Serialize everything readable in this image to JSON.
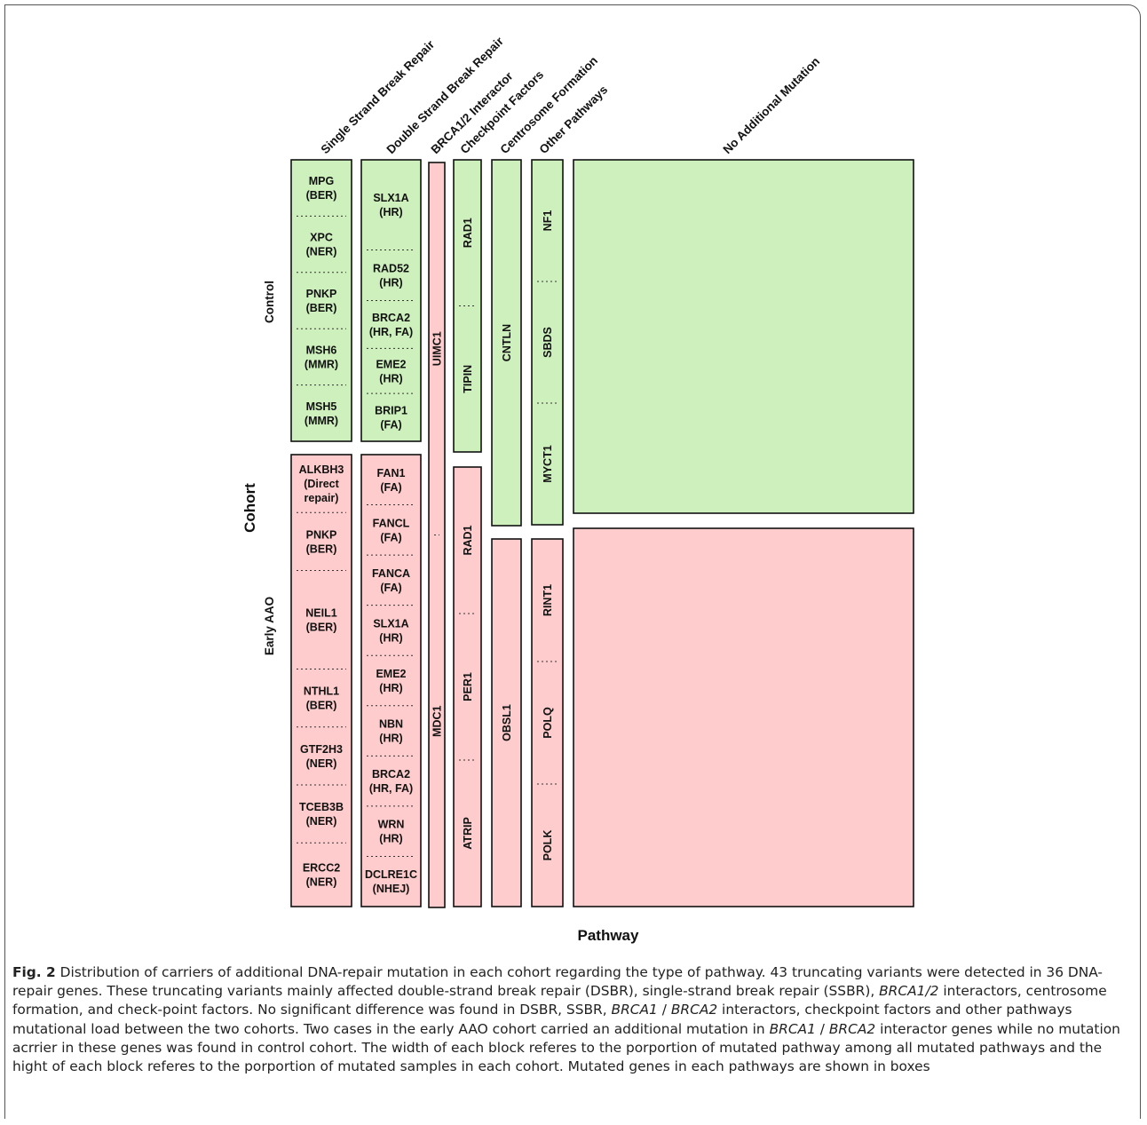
{
  "figure": {
    "y_axis_title": "Cohort",
    "x_axis_title": "Pathway",
    "cohorts": [
      {
        "name": "Control",
        "color": "#cdf0bd"
      },
      {
        "name": "Early AAO",
        "color": "#fecccc"
      }
    ],
    "pathways": [
      "Single Strand Break Repair",
      "Double Strand Break Repair",
      "BRCA1/2 Interactor",
      "Checkpoint Factors",
      "Centrosome Formation",
      "Other Pathways",
      "No Additional Mutation"
    ],
    "blocks": [
      {
        "pathway": "Single Strand Break Repair",
        "cohort": "Control",
        "orientation": "horizontal",
        "genes": [
          "MPG\n(BER)",
          "XPC\n(NER)",
          "PNKP\n(BER)",
          "MSH6\n(MMR)",
          "MSH5\n(MMR)"
        ]
      },
      {
        "pathway": "Double Strand Break Repair",
        "cohort": "Control",
        "orientation": "horizontal",
        "genes": [
          "SLX1A\n(HR)",
          "RAD52\n(HR)",
          "BRCA2\n(HR, FA)",
          "EME2\n(HR)",
          "BRIP1\n(FA)"
        ]
      },
      {
        "pathway": "BRCA1/2 Interactor",
        "cohort": "Early AAO",
        "orientation": "vertical",
        "genes": [
          "UIMC1",
          "MDC1"
        ]
      },
      {
        "pathway": "Checkpoint Factors",
        "cohort": "Control",
        "orientation": "vertical",
        "genes": [
          "RAD1",
          "TIPIN"
        ]
      },
      {
        "pathway": "Centrosome Formation",
        "cohort": "Control",
        "orientation": "vertical",
        "genes": [
          "CNTLN"
        ]
      },
      {
        "pathway": "Other Pathways",
        "cohort": "Control",
        "orientation": "vertical",
        "genes": [
          "NF1",
          "SBDS",
          "MYCT1"
        ]
      },
      {
        "pathway": "No Additional Mutation",
        "cohort": "Control",
        "orientation": "vertical",
        "genes": []
      },
      {
        "pathway": "Single Strand Break Repair",
        "cohort": "Early AAO",
        "orientation": "horizontal",
        "genes": [
          "ALKBH3\n(Direct\nrepair)",
          "PNKP\n(BER)",
          "NEIL1\n(BER)",
          "NTHL1\n(BER)",
          "GTF2H3\n(NER)",
          "TCEB3B\n(NER)",
          "ERCC2\n(NER)"
        ]
      },
      {
        "pathway": "Double Strand Break Repair",
        "cohort": "Early AAO",
        "orientation": "horizontal",
        "genes": [
          "FAN1\n(FA)",
          "FANCL\n(FA)",
          "FANCA\n(FA)",
          "SLX1A\n(HR)",
          "EME2\n(HR)",
          "NBN\n(HR)",
          "BRCA2\n(HR, FA)",
          "WRN\n(HR)",
          "DCLRE1C\n(NHEJ)"
        ]
      },
      {
        "pathway": "Checkpoint Factors",
        "cohort": "Early AAO",
        "orientation": "vertical",
        "genes": [
          "RAD1",
          "PER1",
          "ATRIP"
        ]
      },
      {
        "pathway": "Centrosome Formation",
        "cohort": "Early AAO",
        "orientation": "vertical",
        "genes": [
          "OBSL1"
        ]
      },
      {
        "pathway": "Other Pathways",
        "cohort": "Early AAO",
        "orientation": "vertical",
        "genes": [
          "RINT1",
          "POLQ",
          "POLK"
        ]
      },
      {
        "pathway": "No Additional Mutation",
        "cohort": "Early AAO",
        "orientation": "vertical",
        "genes": []
      }
    ]
  },
  "caption": {
    "label": "Fig. 2",
    "text_1": " Distribution of carriers of additional DNA-repair mutation in each cohort regarding the type of pathway. 43 truncating variants were detected in 36 DNA-repair genes. These truncating variants mainly affected double-strand break repair (DSBR), single-strand break repair (SSBR), ",
    "italic_1": "BRCA1/2",
    "text_2": " interactors, centrosome formation, and check-point factors. No significant difference was found in DSBR, SSBR, ",
    "italic_2": "BRCA1",
    "sep_2": " / ",
    "italic_3": "BRCA2",
    "text_3": " interactors, checkpoint factors and other pathways mutational load between the two cohorts. Two cases in the early AAO cohort carried an additional mutation in ",
    "italic_4": "BRCA1",
    "sep_4": " / ",
    "italic_5": "BRCA2",
    "text_4": " interactor genes while no mutation acrrier in these genes was found in control cohort. The width of each block referes to the porportion of mutated pathway among all mutated pathways and the hight of each block referes to the porportion of mutated samples in each cohort. Mutated genes in each pathways are shown in boxes"
  }
}
